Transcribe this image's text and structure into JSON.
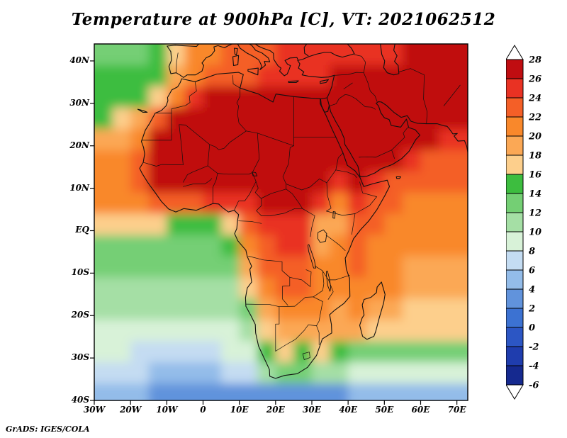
{
  "title": "Temperature at 900hPa [C], VT: 2021062512",
  "attribution": "GrADS: IGES/COLA",
  "chart_data": {
    "type": "heatmap",
    "title": "Temperature at 900hPa [C], VT: 2021062512",
    "variable": "Temperature",
    "level": "900hPa",
    "units": "C",
    "valid_time": "2021062512",
    "lon_range": [
      -30,
      73
    ],
    "lat_range": [
      -40,
      44
    ],
    "grid_on": false,
    "legend_position": "right",
    "x_ticks": [
      {
        "value": -30,
        "label": "30W"
      },
      {
        "value": -20,
        "label": "20W"
      },
      {
        "value": -10,
        "label": "10W"
      },
      {
        "value": 0,
        "label": "0"
      },
      {
        "value": 10,
        "label": "10E"
      },
      {
        "value": 20,
        "label": "20E"
      },
      {
        "value": 30,
        "label": "30E"
      },
      {
        "value": 40,
        "label": "40E"
      },
      {
        "value": 50,
        "label": "50E"
      },
      {
        "value": 60,
        "label": "60E"
      },
      {
        "value": 70,
        "label": "70E"
      }
    ],
    "y_ticks": [
      {
        "value": 40,
        "label": "40N"
      },
      {
        "value": 30,
        "label": "30N"
      },
      {
        "value": 20,
        "label": "20N"
      },
      {
        "value": 10,
        "label": "10N"
      },
      {
        "value": 0,
        "label": "EQ"
      },
      {
        "value": -10,
        "label": "10S"
      },
      {
        "value": -20,
        "label": "20S"
      },
      {
        "value": -30,
        "label": "30S"
      },
      {
        "value": -40,
        "label": "40S"
      }
    ],
    "colorbar": {
      "levels": [
        28,
        26,
        24,
        22,
        20,
        18,
        16,
        14,
        12,
        10,
        8,
        6,
        4,
        2,
        0,
        -2,
        -4,
        -6
      ],
      "colors": [
        "#c00d11",
        "#e93223",
        "#f45f27",
        "#f9882b",
        "#fba855",
        "#fdcf8c",
        "#3dbd3f",
        "#74cf74",
        "#a5dfa5",
        "#d8f2d8",
        "#c4dcf2",
        "#93bce9",
        "#6193dc",
        "#3c72d2",
        "#2c56c4",
        "#1f3dae",
        "#15298f"
      ],
      "end_cap_color": "#ffffff"
    },
    "grid": {
      "lats": [
        42,
        37,
        32,
        27,
        22,
        17,
        12,
        7,
        2,
        -3,
        -8,
        -13,
        -18,
        -23,
        -28,
        -33,
        -38
      ],
      "lons": [
        -27.5,
        -22.5,
        -17.5,
        -12.5,
        -7.5,
        -2.5,
        2.5,
        7.5,
        12.5,
        17.5,
        22.5,
        27.5,
        32.5,
        37.5,
        42.5,
        47.5,
        52.5,
        57.5,
        62.5,
        67.5,
        72.5
      ],
      "temps": [
        [
          14,
          14,
          14,
          15,
          17,
          21,
          22,
          23,
          24,
          24,
          25,
          25,
          26,
          26,
          26,
          26,
          25,
          27,
          28,
          28,
          28
        ],
        [
          15,
          15,
          15,
          16,
          19,
          22,
          23,
          24,
          24,
          25,
          25,
          26,
          26,
          27,
          28,
          28,
          28,
          28,
          28,
          28,
          28
        ],
        [
          15,
          15,
          16,
          18,
          22,
          26,
          27,
          27,
          27,
          27,
          27,
          27,
          27,
          28,
          29,
          29,
          29,
          29,
          29,
          29,
          28
        ],
        [
          16,
          17,
          19,
          24,
          28,
          29,
          29,
          29,
          29,
          29,
          29,
          29,
          29,
          29,
          29,
          29,
          29,
          29,
          29,
          29,
          28
        ],
        [
          19,
          20,
          22,
          27,
          29,
          29,
          29,
          29,
          29,
          29,
          29,
          29,
          29,
          27,
          29,
          29,
          29,
          28,
          27,
          26,
          25
        ],
        [
          21,
          21,
          23,
          27,
          29,
          29,
          29,
          29,
          29,
          29,
          29,
          29,
          28,
          27,
          28,
          29,
          28,
          25,
          24,
          24,
          23
        ],
        [
          22,
          22,
          24,
          27,
          28,
          28,
          28,
          28,
          28,
          28,
          28,
          28,
          27,
          26,
          27,
          26,
          24,
          24,
          23,
          23,
          23
        ],
        [
          21,
          21,
          22,
          23,
          24,
          24,
          25,
          25,
          26,
          27,
          27,
          27,
          25,
          22,
          26,
          24,
          23,
          22,
          22,
          22,
          22
        ],
        [
          18,
          18,
          17,
          17,
          16,
          15,
          15,
          17,
          23,
          25,
          26,
          26,
          20,
          19,
          23,
          23,
          22,
          22,
          21,
          21,
          21
        ],
        [
          14,
          14,
          14,
          14,
          14,
          14,
          14,
          15,
          21,
          24,
          25,
          25,
          20,
          21,
          23,
          22,
          22,
          21,
          21,
          21,
          21
        ],
        [
          13,
          13,
          13,
          13,
          13,
          13,
          13,
          13,
          19,
          23,
          24,
          24,
          22,
          22,
          23,
          22,
          21,
          20,
          20,
          20,
          20
        ],
        [
          12,
          12,
          12,
          12,
          12,
          12,
          12,
          12,
          17,
          21,
          23,
          23,
          22,
          21,
          22,
          21,
          21,
          20,
          19,
          19,
          19
        ],
        [
          11,
          11,
          11,
          11,
          11,
          11,
          11,
          11,
          13,
          19,
          22,
          22,
          21,
          20,
          21,
          19,
          19,
          18,
          18,
          18,
          18
        ],
        [
          10,
          10,
          10,
          10,
          10,
          10,
          10,
          10,
          12,
          18,
          19,
          19,
          20,
          19,
          20,
          17,
          18,
          17,
          17,
          17,
          17
        ],
        [
          9,
          9,
          8,
          8,
          8,
          8,
          8,
          9,
          10,
          16,
          17,
          16,
          18,
          15,
          14,
          14,
          14,
          14,
          13,
          13,
          13
        ],
        [
          7,
          7,
          7,
          6,
          6,
          6,
          6,
          7,
          8,
          11,
          13,
          13,
          12,
          11,
          10,
          10,
          10,
          10,
          9,
          9,
          9
        ],
        [
          5,
          5,
          5,
          4,
          4,
          4,
          4,
          4,
          4,
          3,
          3,
          3,
          3,
          4,
          5,
          5,
          6,
          6,
          6,
          6,
          6
        ]
      ]
    }
  }
}
